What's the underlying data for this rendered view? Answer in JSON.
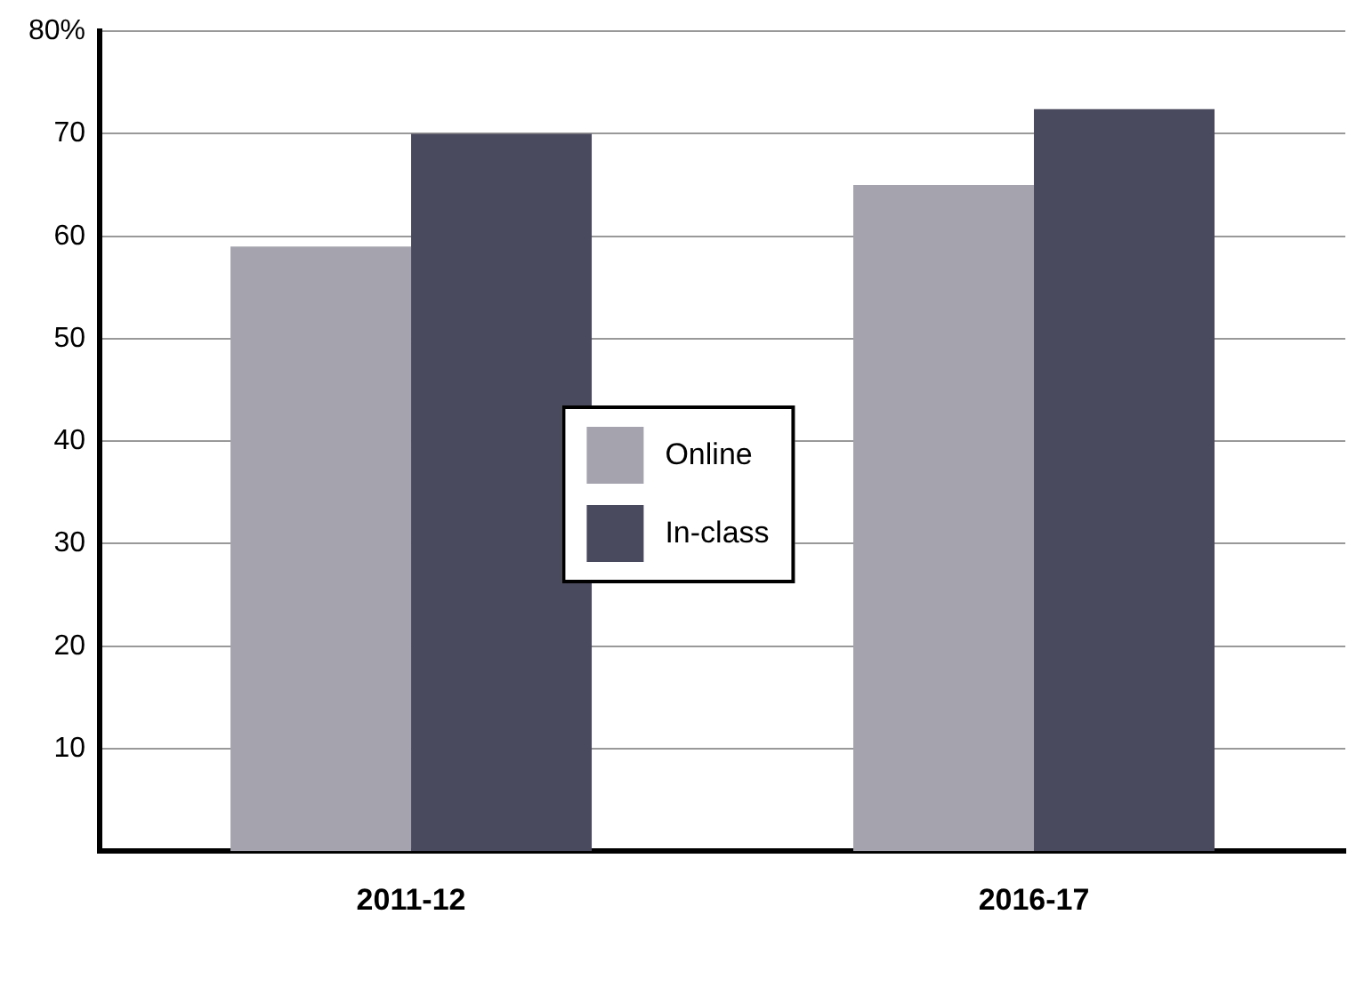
{
  "chart_data": {
    "type": "bar",
    "categories": [
      "2011-12",
      "2016-17"
    ],
    "series": [
      {
        "name": "Online",
        "color": "#a5a4ae",
        "values": [
          59,
          65
        ]
      },
      {
        "name": "In-class",
        "color": "#4a4a5e",
        "values": [
          70,
          72.4
        ]
      }
    ],
    "ylim": [
      0,
      80
    ],
    "yticks": [
      10,
      20,
      30,
      40,
      50,
      60,
      70,
      {
        "value": 80,
        "label": "80%"
      }
    ],
    "grid": "y",
    "legend": "center"
  }
}
